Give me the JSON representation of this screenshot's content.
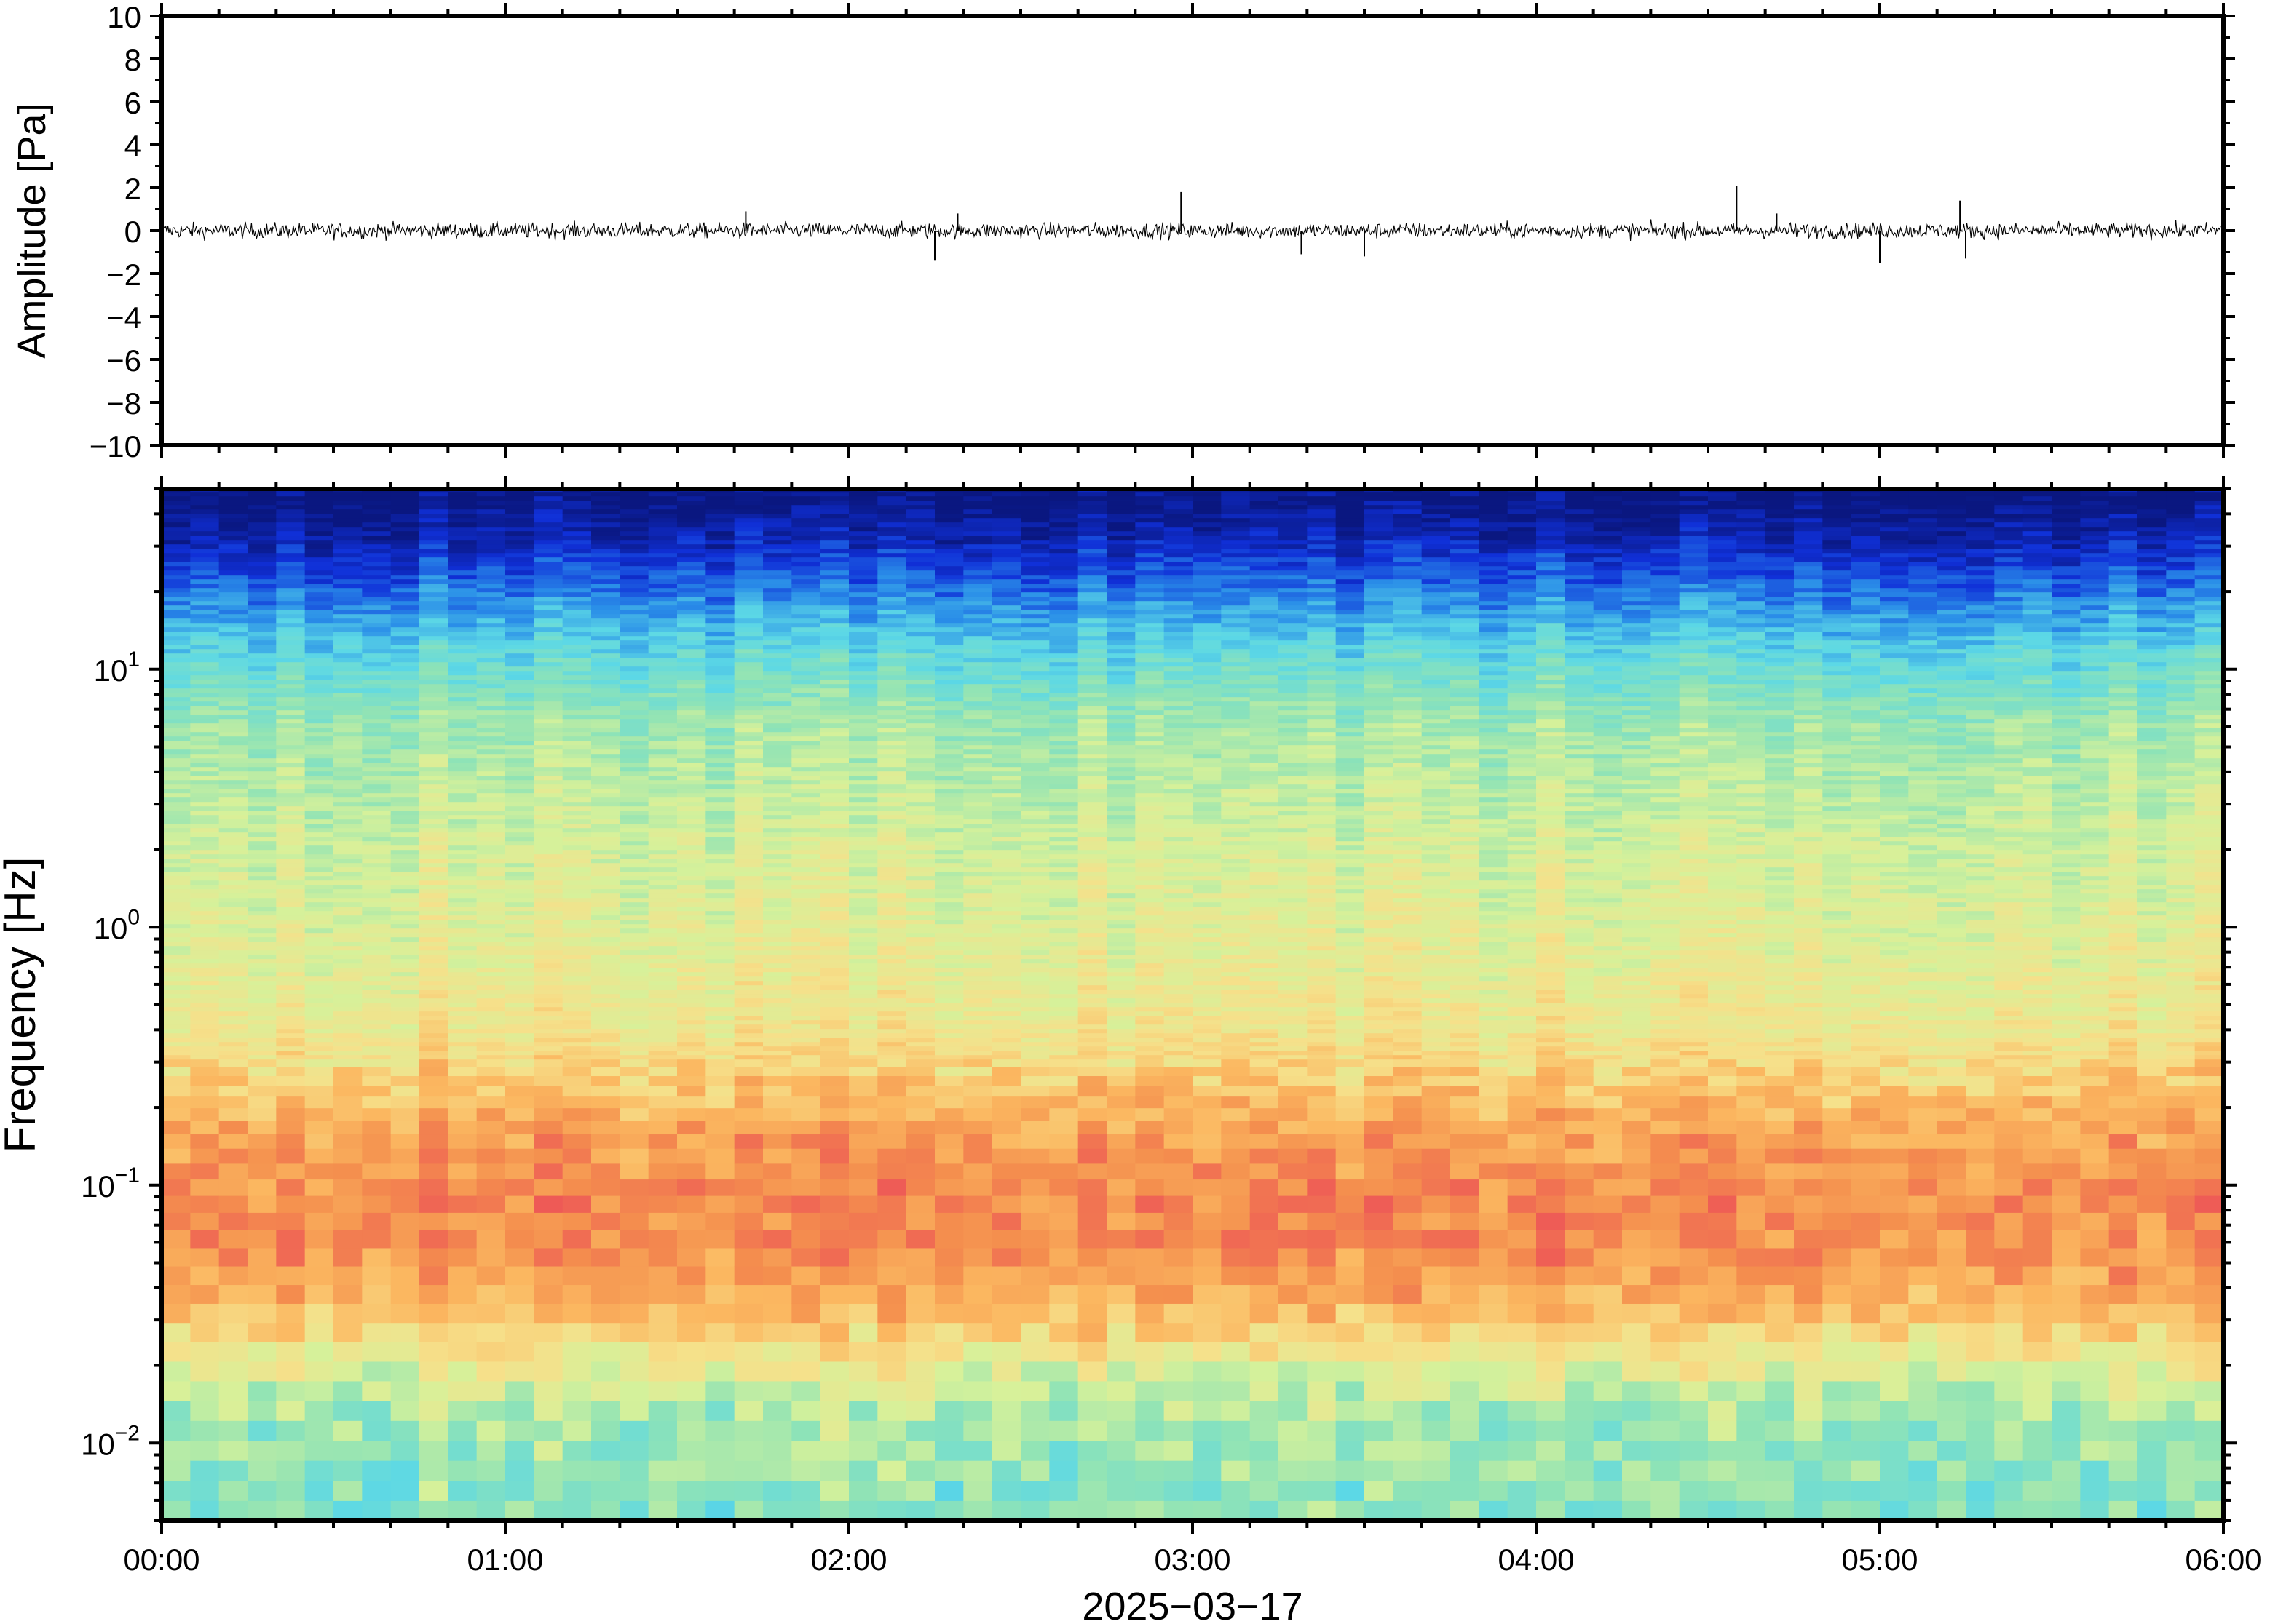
{
  "chart_data": [
    {
      "type": "line",
      "title": "",
      "ylabel": "Amplitude [Pa]",
      "ylim": [
        -10,
        10
      ],
      "yticks": [
        -10,
        -8,
        -6,
        -4,
        -2,
        0,
        2,
        4,
        6,
        8,
        10
      ],
      "ytick_labels": [
        "−10",
        "−8",
        "−6",
        "−4",
        "−2",
        "0",
        "2",
        "4",
        "6",
        "8",
        "10"
      ],
      "xlim": [
        "00:00",
        "06:00"
      ],
      "series": [
        {
          "baseline": 0,
          "noise_envelope_pa": 0.55,
          "spikes": [
            {
              "time": "01:42",
              "value": 0.9
            },
            {
              "time": "02:15",
              "value": -1.4
            },
            {
              "time": "02:19",
              "value": 0.8
            },
            {
              "time": "02:58",
              "value": 1.8
            },
            {
              "time": "03:19",
              "value": -1.1
            },
            {
              "time": "03:30",
              "value": -1.2
            },
            {
              "time": "04:35",
              "value": 2.1
            },
            {
              "time": "04:42",
              "value": 0.8
            },
            {
              "time": "05:00",
              "value": -1.5
            },
            {
              "time": "05:14",
              "value": 1.4
            },
            {
              "time": "05:15",
              "value": -1.3
            }
          ],
          "color": "#000000"
        }
      ],
      "grid": false
    },
    {
      "type": "heatmap",
      "ylabel": "Frequency [Hz]",
      "yscale": "log",
      "ylim": [
        0.005,
        50
      ],
      "yticks": [
        {
          "value": 0.01,
          "base": "10",
          "exp": "−2"
        },
        {
          "value": 0.1,
          "base": "10",
          "exp": "−1"
        },
        {
          "value": 1,
          "base": "10",
          "exp": "0"
        },
        {
          "value": 10,
          "base": "10",
          "exp": "1"
        }
      ],
      "xlabel": "2025−03−17",
      "xlim": [
        "00:00",
        "06:00"
      ],
      "xtick_labels": [
        "00:00",
        "01:00",
        "02:00",
        "03:00",
        "04:00",
        "05:00",
        "06:00"
      ],
      "colormap": [
        "#0a1780",
        "#1030d8",
        "#2a8ee8",
        "#5cd8e6",
        "#8fe3b6",
        "#d6f19a",
        "#f6e08a",
        "#fbb760",
        "#f48f4e",
        "#ee5a56"
      ],
      "intensity_profile": [
        {
          "freq": 45,
          "level": 0.0
        },
        {
          "freq": 30,
          "level": 0.08
        },
        {
          "freq": 20,
          "level": 0.2
        },
        {
          "freq": 12,
          "level": 0.34
        },
        {
          "freq": 6,
          "level": 0.48
        },
        {
          "freq": 2,
          "level": 0.56
        },
        {
          "freq": 0.8,
          "level": 0.6
        },
        {
          "freq": 0.4,
          "level": 0.64
        },
        {
          "freq": 0.25,
          "level": 0.72
        },
        {
          "freq": 0.15,
          "level": 0.84
        },
        {
          "freq": 0.08,
          "level": 0.9
        },
        {
          "freq": 0.05,
          "level": 0.88
        },
        {
          "freq": 0.03,
          "level": 0.78
        },
        {
          "freq": 0.02,
          "level": 0.62
        },
        {
          "freq": 0.012,
          "level": 0.5
        },
        {
          "freq": 0.006,
          "level": 0.44
        }
      ]
    }
  ]
}
